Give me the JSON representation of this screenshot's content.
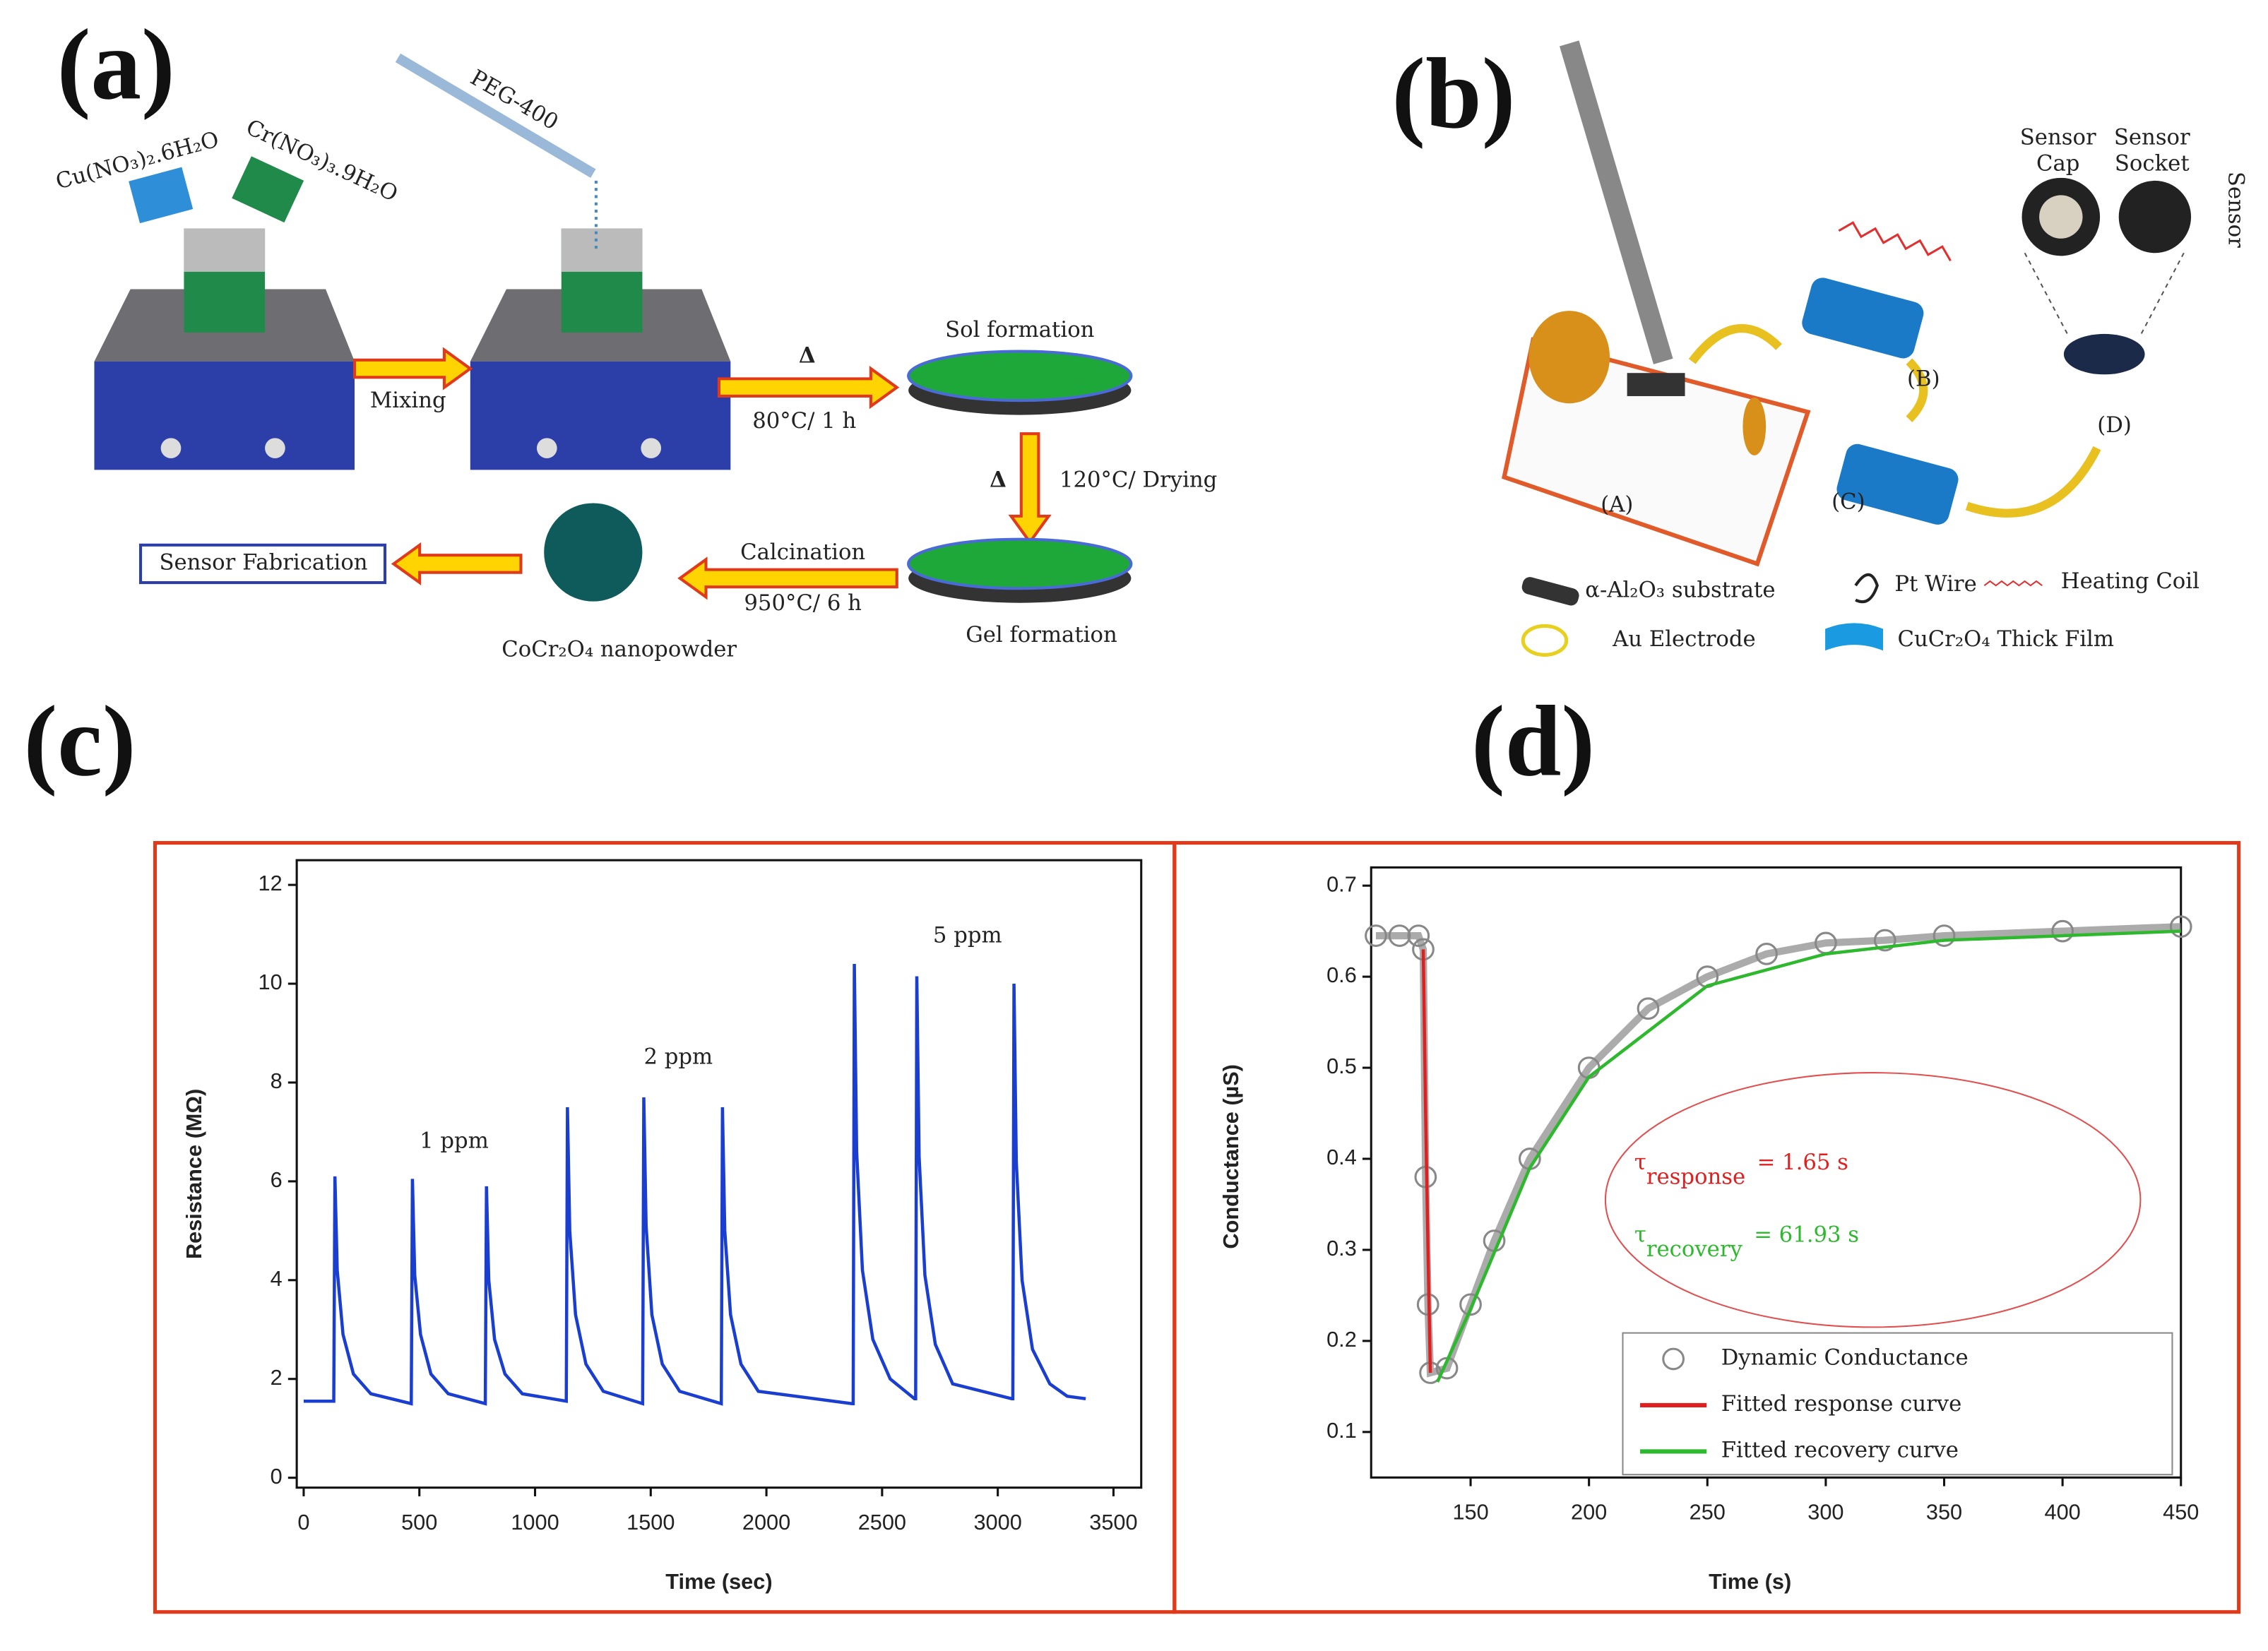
{
  "panel_a": {
    "texts": [
      "(a)",
      "Cu(NO₃)₂.6H₂O",
      "Cr(NO₃)₃.9H₂O",
      "PEG-400",
      "Mixing",
      "Δ",
      "80°C/ 1 h",
      "Sol formation",
      "Δ",
      "120°C/ Drying",
      "Calcination",
      "950°C/ 6 h",
      "Gel formation",
      "CoCr₂O₄ nanopowder",
      "Sensor Fabrication"
    ]
  },
  "panel_b": {
    "texts": [
      "(b)",
      "Sensor",
      "Cap",
      "Sensor",
      "Socket",
      "Sensor",
      "(A)",
      "(B)",
      "(C)",
      "(D)",
      "α-Al₂O₃ substrate",
      "Pt Wire",
      "Heating Coil",
      "Au Electrode",
      "CuCr₂O₄ Thick Film"
    ]
  },
  "chart_data": [
    {
      "type": "line",
      "panel_label": "(c)",
      "x_label": "Time (sec)",
      "y_label": "Resistance (MΩ)",
      "x": [
        0,
        130,
        135,
        145,
        170,
        215,
        290,
        465,
        470,
        480,
        505,
        550,
        625,
        785,
        790,
        800,
        825,
        870,
        945,
        1135,
        1140,
        1150,
        1175,
        1220,
        1295,
        1465,
        1470,
        1480,
        1505,
        1550,
        1625,
        1805,
        1810,
        1820,
        1845,
        1890,
        1965,
        2370,
        2375,
        2380,
        2390,
        2415,
        2460,
        2535,
        2640,
        2645,
        2650,
        2660,
        2685,
        2730,
        2805,
        3060,
        3065,
        3070,
        3080,
        3105,
        3150,
        3225,
        3300,
        3380
      ],
      "series": [
        {
          "name": null,
          "color": "#1a3fd0",
          "values": [
            1.55,
            1.55,
            6.1,
            4.2,
            2.9,
            2.1,
            1.7,
            1.5,
            6.05,
            4.1,
            2.9,
            2.1,
            1.7,
            1.5,
            5.9,
            4.0,
            2.8,
            2.1,
            1.7,
            1.55,
            7.5,
            5.0,
            3.3,
            2.3,
            1.75,
            1.5,
            7.7,
            5.1,
            3.3,
            2.3,
            1.75,
            1.5,
            7.5,
            5.0,
            3.3,
            2.3,
            1.75,
            1.5,
            1.5,
            10.4,
            6.6,
            4.2,
            2.8,
            2.0,
            1.6,
            1.6,
            10.15,
            6.5,
            4.1,
            2.7,
            1.9,
            1.6,
            1.6,
            10.0,
            6.4,
            4.0,
            2.6,
            1.9,
            1.65,
            1.6
          ]
        }
      ],
      "annotations": [
        "1 ppm",
        "2 ppm",
        "5 ppm"
      ],
      "xlim": [
        -30,
        3620
      ],
      "xticks": [
        0,
        500,
        1000,
        1500,
        2000,
        2500,
        3000,
        3500
      ],
      "ylim": [
        -0.2,
        12.5
      ],
      "yticks": [
        0,
        2,
        4,
        6,
        8,
        10,
        12
      ]
    },
    {
      "type": "line",
      "panel_label": "(d)",
      "x_label": "Time (s)",
      "y_label": "Conductance (µS)",
      "series": [
        {
          "name": "Dynamic Conductance",
          "color": "#888888",
          "marker": "circle",
          "x": [
            110,
            120,
            128,
            130,
            131,
            132,
            133,
            140,
            150,
            160,
            175,
            200,
            225,
            250,
            275,
            300,
            325,
            350,
            400,
            450
          ],
          "values": [
            0.645,
            0.645,
            0.645,
            0.63,
            0.38,
            0.24,
            0.165,
            0.17,
            0.24,
            0.31,
            0.4,
            0.5,
            0.565,
            0.6,
            0.625,
            0.637,
            0.64,
            0.645,
            0.65,
            0.655
          ]
        },
        {
          "name": "Fitted response curve",
          "color": "#e02020",
          "x": [
            130,
            131,
            132,
            133
          ],
          "values": [
            0.63,
            0.45,
            0.3,
            0.165
          ]
        },
        {
          "name": "Fitted recovery curve",
          "color": "#2db82d",
          "x": [
            136,
            150,
            175,
            200,
            250,
            300,
            350,
            400,
            450
          ],
          "values": [
            0.155,
            0.235,
            0.39,
            0.49,
            0.59,
            0.625,
            0.64,
            0.645,
            0.65
          ]
        }
      ],
      "annotations": [
        {
          "symbol": "τ",
          "subscript": "response",
          "text": "= 1.65 s",
          "color": "#e02020"
        },
        {
          "symbol": "τ",
          "subscript": "recovery",
          "text": "= 61.93 s",
          "color": "#2db82d"
        }
      ],
      "legend": "lower right",
      "xlim": [
        108,
        450
      ],
      "xticks": [
        150,
        200,
        250,
        300,
        350,
        400,
        450
      ],
      "ylim": [
        0.05,
        0.72
      ],
      "yticks": [
        0.1,
        0.2,
        0.3,
        0.4,
        0.5,
        0.6,
        0.7
      ]
    }
  ]
}
